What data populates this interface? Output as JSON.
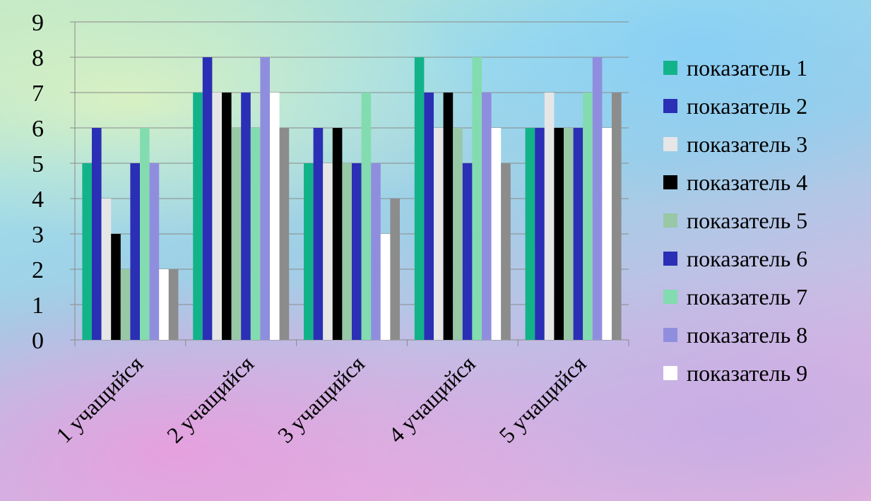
{
  "chart_data": {
    "type": "bar",
    "title": "",
    "xlabel": "",
    "ylabel": "",
    "ylim": [
      0,
      9
    ],
    "yticks": [
      0,
      1,
      2,
      3,
      4,
      5,
      6,
      7,
      8,
      9
    ],
    "grid": true,
    "legend_position": "right",
    "categories": [
      "1 учащийся",
      "2 учащийся",
      "3 учащийся",
      "4 учащийся",
      "5 учащийся"
    ],
    "series": [
      {
        "name": "показатель 1",
        "color": "#13b38a",
        "values": [
          5,
          7,
          5,
          8,
          6
        ]
      },
      {
        "name": "показатель 2",
        "color": "#2a2fb5",
        "values": [
          6,
          8,
          6,
          7,
          6
        ]
      },
      {
        "name": "показатель 3",
        "color": "#e6e6e6",
        "values": [
          4,
          7,
          5,
          6,
          7
        ]
      },
      {
        "name": "показатель 4",
        "color": "#000000",
        "values": [
          3,
          7,
          6,
          7,
          6
        ]
      },
      {
        "name": "показатель 5",
        "color": "#98c8a6",
        "values": [
          2,
          6,
          5,
          6,
          6
        ]
      },
      {
        "name": "показатель 6",
        "color": "#2a2fb5",
        "values": [
          5,
          7,
          5,
          5,
          6
        ]
      },
      {
        "name": "показатель 7",
        "color": "#82dcaf",
        "values": [
          6,
          6,
          7,
          8,
          7
        ]
      },
      {
        "name": "показатель 8",
        "color": "#8f8ede",
        "values": [
          5,
          8,
          5,
          7,
          8
        ]
      },
      {
        "name": "показатель 9",
        "color": "#ffffff",
        "values": [
          2,
          7,
          3,
          6,
          6
        ]
      },
      {
        "color": "#8c8c8c",
        "values": [
          2,
          6,
          4,
          5,
          7
        ]
      }
    ]
  }
}
